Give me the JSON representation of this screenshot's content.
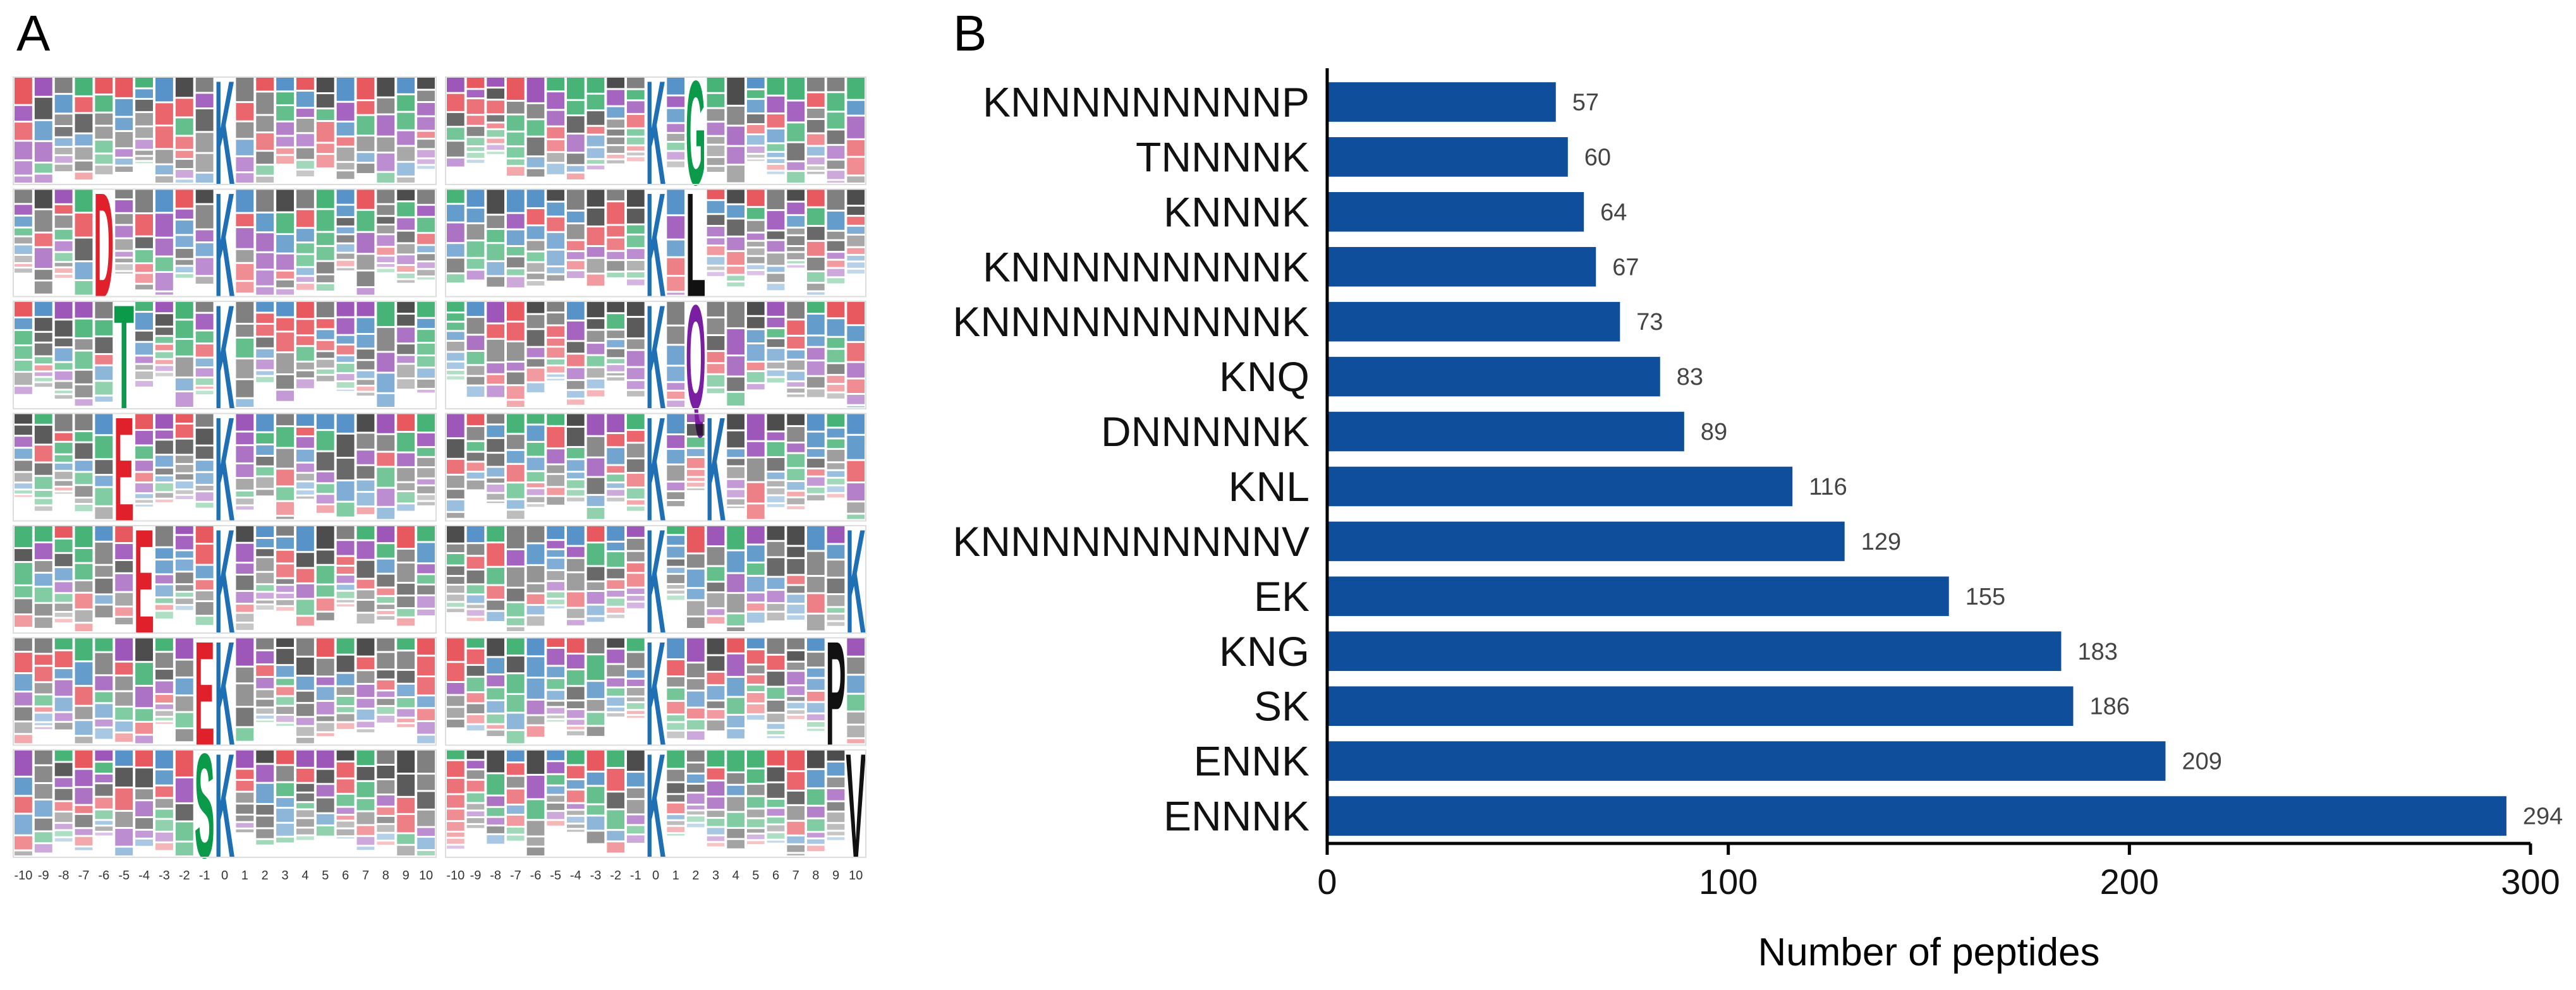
{
  "panel_a": {
    "label": "A",
    "positions": [
      -10,
      -9,
      -8,
      -7,
      -6,
      -5,
      -4,
      -3,
      -2,
      -1,
      0,
      1,
      2,
      3,
      4,
      5,
      6,
      7,
      8,
      9,
      10
    ],
    "logos": [
      [
        {
          "letter": "K",
          "position": 0,
          "color": "#1f6fb5"
        }
      ],
      [
        {
          "letter": "K",
          "position": 0,
          "color": "#1f6fb5"
        },
        {
          "letter": "D",
          "position": -6,
          "color": "#e0202a"
        }
      ],
      [
        {
          "letter": "K",
          "position": 0,
          "color": "#1f6fb5"
        },
        {
          "letter": "T",
          "position": -5,
          "color": "#0a9a4a"
        }
      ],
      [
        {
          "letter": "K",
          "position": 0,
          "color": "#1f6fb5"
        },
        {
          "letter": "E",
          "position": -5,
          "color": "#e0202a"
        }
      ],
      [
        {
          "letter": "K",
          "position": 0,
          "color": "#1f6fb5"
        },
        {
          "letter": "E",
          "position": -4,
          "color": "#e0202a"
        }
      ],
      [
        {
          "letter": "K",
          "position": 0,
          "color": "#1f6fb5"
        },
        {
          "letter": "E",
          "position": -1,
          "color": "#e0202a"
        }
      ],
      [
        {
          "letter": "K",
          "position": 0,
          "color": "#1f6fb5"
        },
        {
          "letter": "S",
          "position": -1,
          "color": "#0a9a4a"
        }
      ],
      [
        {
          "letter": "K",
          "position": 0,
          "color": "#1f6fb5"
        },
        {
          "letter": "G",
          "position": 2,
          "color": "#0a9a4a"
        }
      ],
      [
        {
          "letter": "K",
          "position": 0,
          "color": "#1f6fb5"
        },
        {
          "letter": "L",
          "position": 2,
          "color": "#111111"
        }
      ],
      [
        {
          "letter": "K",
          "position": 0,
          "color": "#1f6fb5"
        },
        {
          "letter": "Q",
          "position": 2,
          "color": "#7b1fa2"
        }
      ],
      [
        {
          "letter": "K",
          "position": 0,
          "color": "#1f6fb5"
        },
        {
          "letter": "K",
          "position": 3,
          "color": "#1f6fb5"
        }
      ],
      [
        {
          "letter": "K",
          "position": 0,
          "color": "#1f6fb5"
        },
        {
          "letter": "K",
          "position": 10,
          "color": "#1f6fb5"
        }
      ],
      [
        {
          "letter": "K",
          "position": 0,
          "color": "#1f6fb5"
        },
        {
          "letter": "P",
          "position": 9,
          "color": "#111111"
        }
      ],
      [
        {
          "letter": "K",
          "position": 0,
          "color": "#1f6fb5"
        },
        {
          "letter": "V",
          "position": 10,
          "color": "#111111"
        }
      ]
    ]
  },
  "chart_data": {
    "type": "barh",
    "panel_label": "B",
    "categories": [
      "KNNNNNNNNNP",
      "TNNNNK",
      "KNNNK",
      "KNNNNNNNNNK",
      "KNNNNNNNNNNK",
      "KNQ",
      "DNNNNNK",
      "KNL",
      "KNNNNNNNNNNV",
      "EK",
      "KNG",
      "SK",
      "ENNK",
      "ENNNK"
    ],
    "values": [
      57,
      60,
      64,
      67,
      73,
      83,
      89,
      116,
      129,
      155,
      183,
      186,
      209,
      294
    ],
    "color": "#0f4e9a",
    "xlabel": "Number of peptides",
    "xlim": [
      0,
      300
    ],
    "xticks": [
      0,
      100,
      200,
      300
    ]
  }
}
